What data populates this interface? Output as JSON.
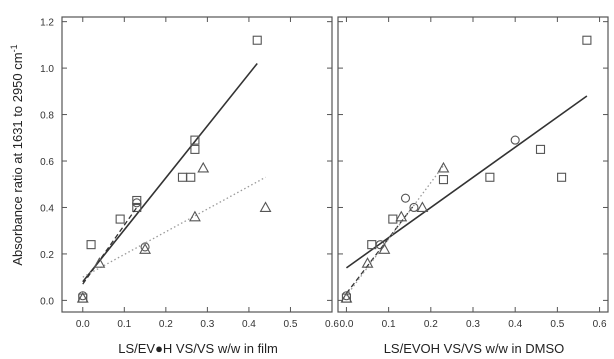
{
  "chart_data": [
    {
      "type": "scatter",
      "panel": "film",
      "xlabel": "LS/EV●H VS/VS w/w in film",
      "ylabel": "Absorbance ratio at 1631 to 2950 cm",
      "ylabel_superscript": "-1",
      "xlim": [
        -0.05,
        0.6
      ],
      "ylim": [
        -0.05,
        1.22
      ],
      "xticks": [
        "0.0",
        "0.1",
        "0.2",
        "0.3",
        "0.4",
        "0.5",
        "0.6"
      ],
      "yticks": [
        "0.0",
        "0.2",
        "0.4",
        "0.6",
        "0.8",
        "1.0",
        "1.2"
      ],
      "series": [
        {
          "marker": "square",
          "points": [
            [
              0.0,
              0.01
            ],
            [
              0.02,
              0.24
            ],
            [
              0.09,
              0.35
            ],
            [
              0.13,
              0.4
            ],
            [
              0.13,
              0.43
            ],
            [
              0.24,
              0.53
            ],
            [
              0.26,
              0.53
            ],
            [
              0.27,
              0.65
            ],
            [
              0.27,
              0.69
            ],
            [
              0.42,
              1.12
            ]
          ],
          "fit": {
            "style": "solid",
            "x": [
              0.0,
              0.42
            ],
            "y": [
              0.08,
              1.02
            ]
          }
        },
        {
          "marker": "circle",
          "points": [
            [
              0.0,
              0.02
            ],
            [
              0.13,
              0.42
            ],
            [
              0.15,
              0.23
            ]
          ],
          "fit": {
            "style": "dashed",
            "x": [
              0.0,
              0.13
            ],
            "y": [
              0.07,
              0.4
            ]
          }
        },
        {
          "marker": "triangle",
          "points": [
            [
              0.0,
              0.01
            ],
            [
              0.04,
              0.16
            ],
            [
              0.15,
              0.22
            ],
            [
              0.27,
              0.36
            ],
            [
              0.29,
              0.57
            ],
            [
              0.44,
              0.4
            ]
          ],
          "fit": {
            "style": "dotted",
            "x": [
              0.0,
              0.44
            ],
            "y": [
              0.1,
              0.53
            ]
          }
        }
      ]
    },
    {
      "type": "scatter",
      "panel": "dmso",
      "xlabel": "LS/EVOH VS/VS w/w in DMSO",
      "xlim": [
        -0.02,
        0.62
      ],
      "ylim": [
        -0.05,
        1.22
      ],
      "xticks": [
        "0.0",
        "0.1",
        "0.2",
        "0.3",
        "0.4",
        "0.5",
        "0.6"
      ],
      "series": [
        {
          "marker": "square",
          "points": [
            [
              0.0,
              0.01
            ],
            [
              0.06,
              0.24
            ],
            [
              0.11,
              0.35
            ],
            [
              0.23,
              0.52
            ],
            [
              0.34,
              0.53
            ],
            [
              0.46,
              0.65
            ],
            [
              0.51,
              0.53
            ],
            [
              0.57,
              1.12
            ]
          ],
          "fit": {
            "style": "solid",
            "x": [
              0.0,
              0.57
            ],
            "y": [
              0.14,
              0.88
            ]
          }
        },
        {
          "marker": "circle",
          "points": [
            [
              0.0,
              0.02
            ],
            [
              0.08,
              0.24
            ],
            [
              0.14,
              0.44
            ],
            [
              0.16,
              0.4
            ],
            [
              0.4,
              0.69
            ]
          ],
          "fit": {
            "style": "dashed",
            "x": [
              0.0,
              0.16
            ],
            "y": [
              0.03,
              0.41
            ]
          }
        },
        {
          "marker": "triangle",
          "points": [
            [
              0.0,
              0.01
            ],
            [
              0.05,
              0.16
            ],
            [
              0.09,
              0.22
            ],
            [
              0.13,
              0.36
            ],
            [
              0.18,
              0.4
            ],
            [
              0.23,
              0.57
            ]
          ],
          "fit": {
            "style": "dotted",
            "x": [
              0.0,
              0.23
            ],
            "y": [
              0.02,
              0.58
            ]
          }
        }
      ]
    }
  ]
}
